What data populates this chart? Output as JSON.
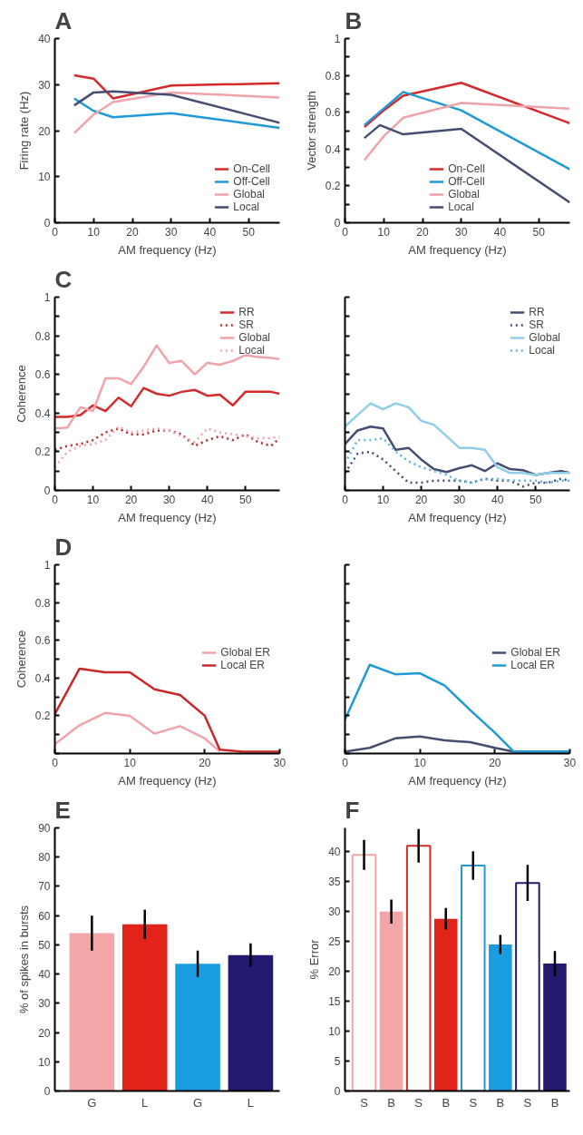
{
  "chart_data": [
    {
      "type": "line",
      "title": "A",
      "xlabel": "AM frequency (Hz)",
      "ylabel": "Firing rate (Hz)",
      "xlim": [
        0,
        58
      ],
      "ylim": [
        0,
        40
      ],
      "xticks": [
        0,
        10,
        20,
        30,
        40,
        50
      ],
      "yticks": [
        0,
        10,
        20,
        30,
        40
      ],
      "legend": "bottom right",
      "x": [
        5,
        10,
        15,
        30,
        58
      ],
      "series": [
        {
          "name": "On-Cell",
          "color": "#d42a2a",
          "values": [
            32,
            31.3,
            27,
            29.8,
            30.3
          ]
        },
        {
          "name": "Off-Cell",
          "color": "#1f9ad6",
          "values": [
            27,
            24.3,
            22.9,
            23.8,
            20.6
          ]
        },
        {
          "name": "Global",
          "color": "#f0a3a8",
          "values": [
            19.5,
            23.5,
            26.2,
            28.3,
            27.2
          ]
        },
        {
          "name": "Local",
          "color": "#454e72",
          "values": [
            25.5,
            28.3,
            28.5,
            27.8,
            21.7
          ]
        }
      ]
    },
    {
      "type": "line",
      "title": "B",
      "xlabel": "AM frequency (Hz)",
      "ylabel": "Vector strength",
      "xlim": [
        0,
        58
      ],
      "ylim": [
        0,
        1
      ],
      "xticks": [
        0,
        10,
        20,
        30,
        40,
        50
      ],
      "yticks": [
        0,
        {
          "value": 0.1,
          "label": null
        },
        0.2,
        {
          "value": 0.3,
          "label": null
        },
        0.4,
        {
          "value": 0.5,
          "label": null
        },
        0.6,
        {
          "value": 0.7,
          "label": null
        },
        0.8,
        {
          "value": 0.9,
          "label": null
        },
        1
      ],
      "legend": "bottom",
      "x": [
        5,
        10,
        15,
        30,
        58
      ],
      "series": [
        {
          "name": "On-Cell",
          "color": "#d42a2a",
          "values": [
            0.52,
            0.61,
            0.69,
            0.76,
            0.54
          ]
        },
        {
          "name": "Off-Cell",
          "color": "#1f9ad6",
          "values": [
            0.53,
            0.62,
            0.71,
            0.61,
            0.29
          ]
        },
        {
          "name": "Global",
          "color": "#f0a3a8",
          "values": [
            0.34,
            0.47,
            0.57,
            0.65,
            0.62
          ]
        },
        {
          "name": "Local",
          "color": "#454e72",
          "x": [
            5,
            9,
            15,
            30,
            58
          ],
          "values": [
            0.46,
            0.53,
            0.48,
            0.51,
            0.11
          ]
        }
      ]
    },
    {
      "type": "line",
      "title": "C",
      "xlabel": "AM frequency (Hz)",
      "ylabel": "Coherence",
      "xlim": [
        0,
        59
      ],
      "ylim": [
        0,
        1
      ],
      "xticks": [
        0,
        10,
        20,
        30,
        40,
        50
      ],
      "yticks": [
        0,
        {
          "value": 0.1,
          "label": null
        },
        0.2,
        {
          "value": 0.3,
          "label": null
        },
        0.4,
        {
          "value": 0.5,
          "label": null
        },
        0.6,
        {
          "value": 0.7,
          "label": null
        },
        0.8,
        {
          "value": 0.9,
          "label": null
        },
        1
      ],
      "legend": "top right",
      "x": [
        0,
        3.3,
        6.7,
        10,
        13.3,
        16.7,
        20,
        23.3,
        26.7,
        30,
        33.3,
        36.7,
        40,
        43.3,
        46.7,
        50,
        53.3,
        56.7,
        59
      ],
      "series": [
        {
          "name": "RR",
          "color": "#d42a2a",
          "values": [
            0.38,
            0.38,
            0.39,
            0.44,
            0.41,
            0.48,
            0.435,
            0.53,
            0.5,
            0.49,
            0.51,
            0.52,
            0.49,
            0.495,
            0.44,
            0.51,
            0.51,
            0.51,
            0.5
          ]
        },
        {
          "name": "SR",
          "color": "#b82525",
          "line_style": "dotted",
          "values": [
            0.21,
            0.23,
            0.24,
            0.26,
            0.3,
            0.32,
            0.29,
            0.29,
            0.31,
            0.31,
            0.29,
            0.23,
            0.26,
            0.28,
            0.26,
            0.29,
            0.25,
            0.23,
            0.27
          ]
        },
        {
          "name": "Global",
          "color": "#f0a3a8",
          "values": [
            0.32,
            0.325,
            0.43,
            0.41,
            0.58,
            0.58,
            0.55,
            0.64,
            0.75,
            0.66,
            0.67,
            0.6,
            0.66,
            0.65,
            0.67,
            0.7,
            0.69,
            0.685,
            0.68
          ]
        },
        {
          "name": "Local",
          "color": "#f0a3a8",
          "line_style": "dotted",
          "values": [
            0.12,
            0.2,
            0.23,
            0.24,
            0.26,
            0.33,
            0.3,
            0.31,
            0.32,
            0.31,
            0.28,
            0.25,
            0.32,
            0.3,
            0.29,
            0.28,
            0.27,
            0.27,
            0.28
          ]
        }
      ]
    },
    {
      "type": "line",
      "xlabel": "AM frequency (Hz)",
      "xlim": [
        0,
        59
      ],
      "ylim": [
        0,
        1
      ],
      "xticks": [
        0,
        10,
        20,
        30,
        40,
        50
      ],
      "yticks": [
        0,
        {
          "value": 0.1,
          "label": null
        },
        0.2,
        {
          "value": 0.3,
          "label": null
        },
        0.4,
        {
          "value": 0.5,
          "label": null
        },
        0.6,
        {
          "value": 0.7,
          "label": null
        },
        0.8,
        {
          "value": 0.9,
          "label": null
        },
        1
      ],
      "tick_labels": "x",
      "legend": "top right",
      "x": [
        0,
        3.3,
        6.7,
        10,
        13.3,
        16.7,
        20,
        23.3,
        26.7,
        30,
        33.3,
        36.7,
        40,
        43.3,
        46.7,
        50,
        53.3,
        56.7,
        59
      ],
      "series": [
        {
          "name": "RR",
          "color": "#454e72",
          "values": [
            0.24,
            0.31,
            0.33,
            0.32,
            0.21,
            0.22,
            0.16,
            0.11,
            0.095,
            0.115,
            0.13,
            0.1,
            0.14,
            0.11,
            0.105,
            0.08,
            0.09,
            0.1,
            0.09
          ]
        },
        {
          "name": "SR",
          "color": "#454e72",
          "line_style": "dotted",
          "values": [
            0.09,
            0.19,
            0.2,
            0.16,
            0.1,
            0.04,
            0.04,
            0.05,
            0.05,
            0.05,
            0.04,
            0.06,
            0.05,
            0.05,
            0.02,
            0.04,
            0.04,
            0.06,
            0.05
          ]
        },
        {
          "name": "Global",
          "color": "#8fcde8",
          "values": [
            0.33,
            0.39,
            0.45,
            0.42,
            0.45,
            0.43,
            0.36,
            0.34,
            0.28,
            0.22,
            0.22,
            0.21,
            0.12,
            0.09,
            0.09,
            0.08,
            0.09,
            0.09,
            0.09
          ]
        },
        {
          "name": "Local",
          "color": "#5ab6e0",
          "line_style": "dotted",
          "values": [
            0.14,
            0.26,
            0.26,
            0.27,
            0.2,
            0.15,
            0.12,
            0.1,
            0.08,
            0.05,
            0.04,
            0.06,
            0.06,
            0.05,
            0.05,
            0.05,
            0.04,
            0.05,
            0.05
          ]
        }
      ]
    },
    {
      "type": "line",
      "title": "D",
      "xlabel": "AM frequency (Hz)",
      "ylabel": "Coherence",
      "xlim": [
        0,
        30
      ],
      "ylim": [
        0,
        1
      ],
      "xticks": [
        0,
        10,
        20,
        30
      ],
      "yticks": [
        {
          "value": 0,
          "label": null
        },
        {
          "value": 0.1,
          "label": null
        },
        0.2,
        {
          "value": 0.3,
          "label": null
        },
        0.4,
        {
          "value": 0.5,
          "label": null
        },
        0.6,
        {
          "value": 0.7,
          "label": null
        },
        0.8,
        {
          "value": 0.9,
          "label": null
        },
        1
      ],
      "legend": "right",
      "x": [
        0,
        3.3,
        6.7,
        10,
        13.3,
        16.7,
        20,
        22,
        25,
        30
      ],
      "series": [
        {
          "name": "Global ER",
          "color": "#f0a3a8",
          "values": [
            0.05,
            0.15,
            0.215,
            0.2,
            0.105,
            0.145,
            0.08,
            0.01,
            null,
            null
          ]
        },
        {
          "name": "Local ER",
          "color": "#c8282a",
          "values": [
            0.21,
            0.45,
            0.43,
            0.43,
            0.34,
            0.31,
            0.2,
            0.02,
            0.01,
            0.01
          ]
        }
      ]
    },
    {
      "type": "line",
      "xlabel": "AM frequency (Hz)",
      "xlim": [
        0,
        30
      ],
      "ylim": [
        0,
        1
      ],
      "xticks": [
        0,
        10,
        20,
        30
      ],
      "yticks": [
        {
          "value": 0,
          "label": null
        },
        {
          "value": 0.1,
          "label": null
        },
        {
          "value": 0.2,
          "label": null
        },
        {
          "value": 0.3,
          "label": null
        },
        {
          "value": 0.4,
          "label": null
        },
        {
          "value": 0.5,
          "label": null
        },
        {
          "value": 0.6,
          "label": null
        },
        {
          "value": 0.7,
          "label": null
        },
        {
          "value": 0.8,
          "label": null
        },
        {
          "value": 0.9,
          "label": null
        },
        {
          "value": 1,
          "label": null
        }
      ],
      "tick_labels": "x",
      "legend": "right",
      "x": [
        0,
        3.3,
        6.7,
        10,
        13.3,
        16.7,
        20,
        22.5,
        30
      ],
      "series": [
        {
          "name": "Global ER",
          "color": "#454e72",
          "values": [
            0.01,
            0.03,
            0.08,
            0.09,
            0.07,
            0.06,
            0.03,
            0.01,
            0.01
          ]
        },
        {
          "name": "Local ER",
          "color": "#1f9ad6",
          "values": [
            0.18,
            0.47,
            0.42,
            0.425,
            0.36,
            0.23,
            0.11,
            0.01,
            0.01
          ]
        }
      ]
    },
    {
      "type": "bar",
      "title": "E",
      "ylabel": "% of spikes in bursts",
      "categories": [
        "G",
        "L",
        "G",
        "L"
      ],
      "ylim": [
        0,
        90
      ],
      "yticks": [
        0,
        10,
        20,
        30,
        40,
        50,
        60,
        70,
        80,
        90
      ],
      "values": [
        54,
        57,
        43.5,
        46.5
      ],
      "errors": [
        6,
        5,
        4.5,
        4
      ],
      "colors": [
        "#f4a5a8",
        "#e2231a",
        "#1a9de0",
        "#23196e"
      ]
    },
    {
      "type": "bar",
      "title": "F",
      "ylabel": "% Error",
      "categories": [
        "S",
        "B",
        "S",
        "B",
        "S",
        "B",
        "S",
        "B"
      ],
      "ylim": [
        0,
        44
      ],
      "yticks": [
        0,
        5,
        10,
        15,
        20,
        25,
        30,
        35,
        40
      ],
      "series": [
        {
          "values": [
            39.5,
            null,
            41,
            null,
            37.7,
            null,
            34.8,
            null
          ],
          "errors": [
            2.5,
            null,
            2.8,
            null,
            2.4,
            null,
            3,
            null
          ],
          "colors": [
            "#f4a5a8",
            null,
            "#d42a2a",
            null,
            "#1f9ad6",
            null,
            "#23196e",
            null
          ]
        },
        {
          "values": [
            null,
            30,
            null,
            28.8,
            null,
            24.5,
            null,
            21.3
          ],
          "errors": [
            null,
            2,
            null,
            1.8,
            null,
            1.6,
            null,
            2.1
          ],
          "colors": [
            null,
            "#f4a5a8",
            null,
            "#e2231a",
            null,
            "#1a9de0",
            null,
            "#23196e"
          ]
        }
      ]
    }
  ]
}
